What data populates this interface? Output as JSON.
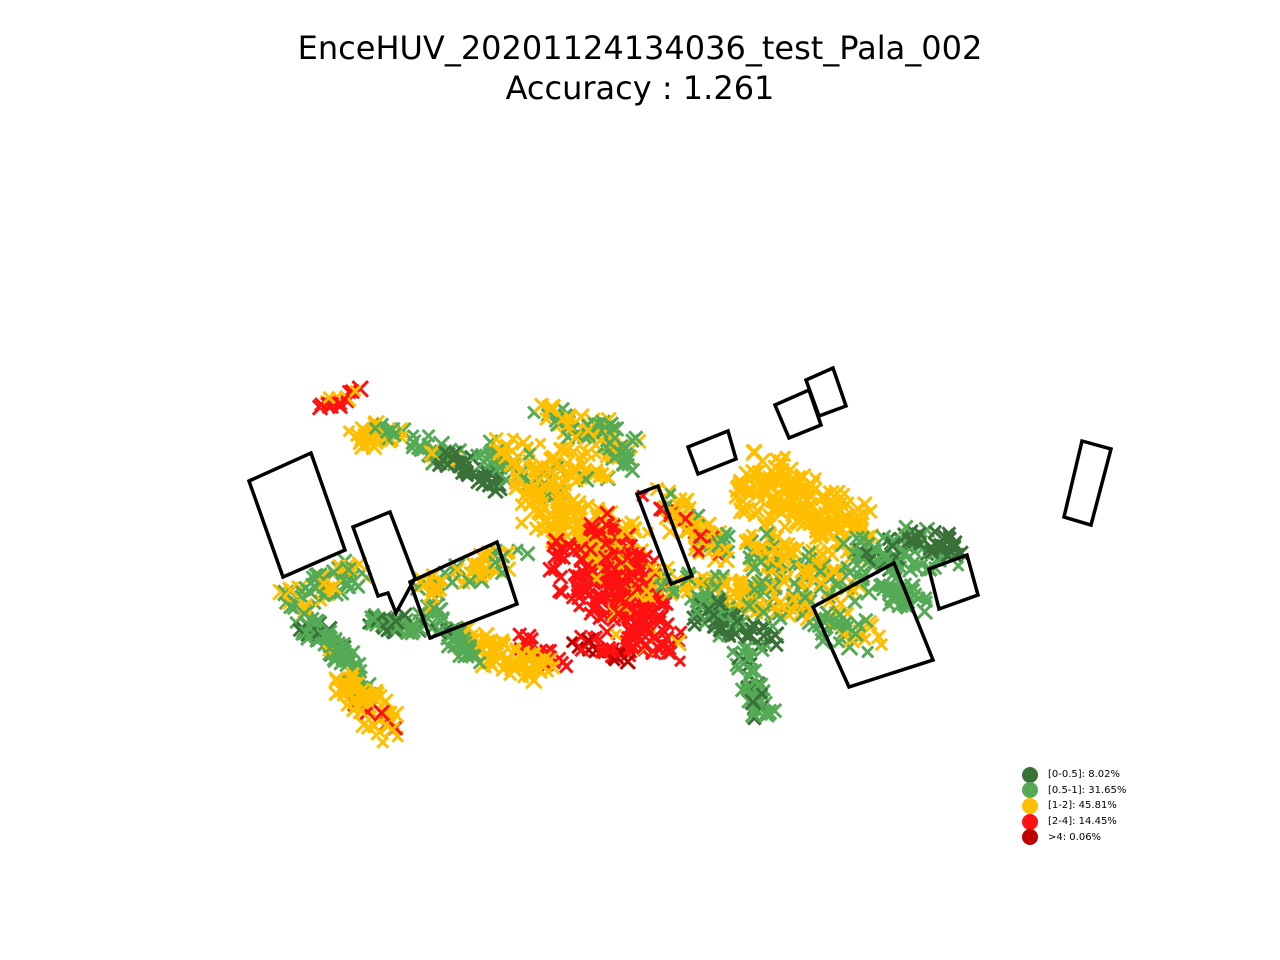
{
  "chart_data": {
    "type": "scatter",
    "title": "EnceHUV_20201124134036_test_Pala_002",
    "subtitle": "Accuracy : 1.261",
    "grid": false,
    "legend_position": "bottom-right",
    "legend": [
      {
        "label": "[0-0.5]: 8.02%",
        "color": "#3a7139"
      },
      {
        "label": "[0.5-1]: 31.65%",
        "color": "#55aa55"
      },
      {
        "label": "[1-2]: 45.81%",
        "color": "#ffbf00"
      },
      {
        "label": "[2-4]: 14.45%",
        "color": "#ff1111"
      },
      {
        "label": ">4: 0.06%",
        "color": "#c00000"
      }
    ]
  }
}
